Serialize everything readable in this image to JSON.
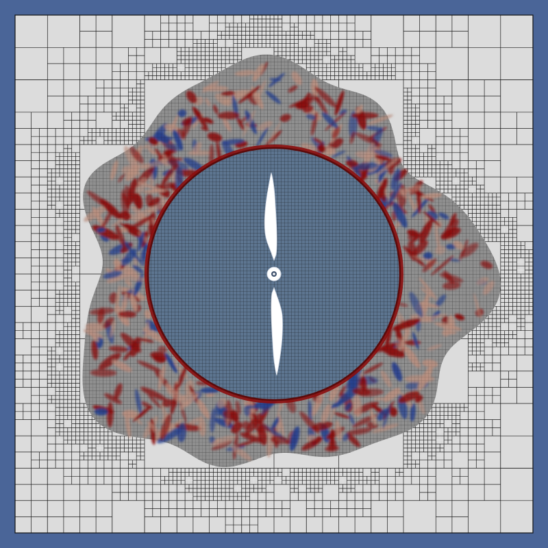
{
  "colors": {
    "frame": "#4a6598",
    "domain_fill": "#dcdcdc",
    "grid_line": "#1a1a1a",
    "rotor_zone_fill": "#5d7590",
    "turbulence_gray": "#8f8f8f",
    "vorticity_positive": "#8b0d0d",
    "vorticity_negative": "#26418f",
    "vorticity_weak_positive": "#b98f7f",
    "propeller_fill": "#ffffff"
  },
  "scene": {
    "description_icon": "adaptive-mesh-refinement-propeller-simulation",
    "blade_count": 2,
    "hub_icon": "hub-circle-icon"
  }
}
